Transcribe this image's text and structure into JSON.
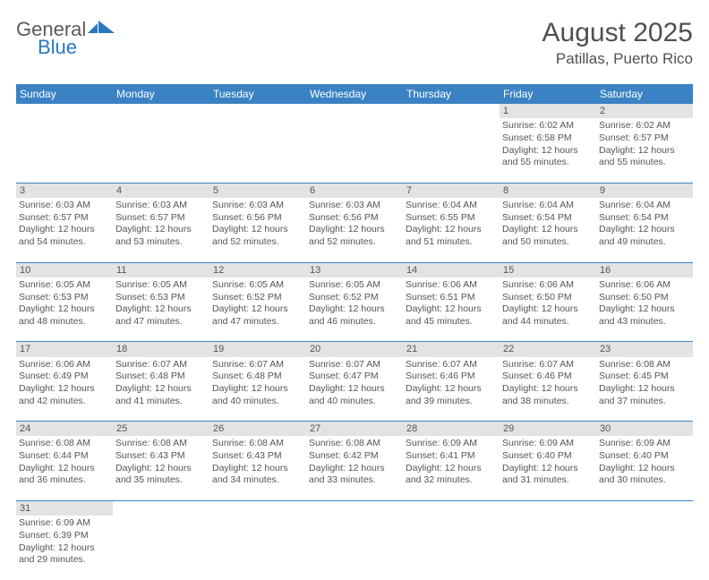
{
  "logo": {
    "word1": "General",
    "word2": "Blue",
    "color1": "#5a5a5a",
    "color2": "#2a78c2",
    "flag_color": "#2a78c2"
  },
  "title": "August 2025",
  "location": "Patillas, Puerto Rico",
  "header_bg": "#3b82c4",
  "header_fg": "#ffffff",
  "daynum_bg": "#e3e3e3",
  "rule_color": "#3b82c4",
  "text_color": "#555555",
  "page_bg": "#ffffff",
  "day_names": [
    "Sunday",
    "Monday",
    "Tuesday",
    "Wednesday",
    "Thursday",
    "Friday",
    "Saturday"
  ],
  "weeks": [
    {
      "days": [
        null,
        null,
        null,
        null,
        null,
        {
          "n": "1",
          "sunrise": "6:02 AM",
          "sunset": "6:58 PM",
          "dl_h": 12,
          "dl_m": 55
        },
        {
          "n": "2",
          "sunrise": "6:02 AM",
          "sunset": "6:57 PM",
          "dl_h": 12,
          "dl_m": 55
        }
      ]
    },
    {
      "days": [
        {
          "n": "3",
          "sunrise": "6:03 AM",
          "sunset": "6:57 PM",
          "dl_h": 12,
          "dl_m": 54
        },
        {
          "n": "4",
          "sunrise": "6:03 AM",
          "sunset": "6:57 PM",
          "dl_h": 12,
          "dl_m": 53
        },
        {
          "n": "5",
          "sunrise": "6:03 AM",
          "sunset": "6:56 PM",
          "dl_h": 12,
          "dl_m": 52
        },
        {
          "n": "6",
          "sunrise": "6:03 AM",
          "sunset": "6:56 PM",
          "dl_h": 12,
          "dl_m": 52
        },
        {
          "n": "7",
          "sunrise": "6:04 AM",
          "sunset": "6:55 PM",
          "dl_h": 12,
          "dl_m": 51
        },
        {
          "n": "8",
          "sunrise": "6:04 AM",
          "sunset": "6:54 PM",
          "dl_h": 12,
          "dl_m": 50
        },
        {
          "n": "9",
          "sunrise": "6:04 AM",
          "sunset": "6:54 PM",
          "dl_h": 12,
          "dl_m": 49
        }
      ]
    },
    {
      "days": [
        {
          "n": "10",
          "sunrise": "6:05 AM",
          "sunset": "6:53 PM",
          "dl_h": 12,
          "dl_m": 48
        },
        {
          "n": "11",
          "sunrise": "6:05 AM",
          "sunset": "6:53 PM",
          "dl_h": 12,
          "dl_m": 47
        },
        {
          "n": "12",
          "sunrise": "6:05 AM",
          "sunset": "6:52 PM",
          "dl_h": 12,
          "dl_m": 47
        },
        {
          "n": "13",
          "sunrise": "6:05 AM",
          "sunset": "6:52 PM",
          "dl_h": 12,
          "dl_m": 46
        },
        {
          "n": "14",
          "sunrise": "6:06 AM",
          "sunset": "6:51 PM",
          "dl_h": 12,
          "dl_m": 45
        },
        {
          "n": "15",
          "sunrise": "6:06 AM",
          "sunset": "6:50 PM",
          "dl_h": 12,
          "dl_m": 44
        },
        {
          "n": "16",
          "sunrise": "6:06 AM",
          "sunset": "6:50 PM",
          "dl_h": 12,
          "dl_m": 43
        }
      ]
    },
    {
      "days": [
        {
          "n": "17",
          "sunrise": "6:06 AM",
          "sunset": "6:49 PM",
          "dl_h": 12,
          "dl_m": 42
        },
        {
          "n": "18",
          "sunrise": "6:07 AM",
          "sunset": "6:48 PM",
          "dl_h": 12,
          "dl_m": 41
        },
        {
          "n": "19",
          "sunrise": "6:07 AM",
          "sunset": "6:48 PM",
          "dl_h": 12,
          "dl_m": 40
        },
        {
          "n": "20",
          "sunrise": "6:07 AM",
          "sunset": "6:47 PM",
          "dl_h": 12,
          "dl_m": 40
        },
        {
          "n": "21",
          "sunrise": "6:07 AM",
          "sunset": "6:46 PM",
          "dl_h": 12,
          "dl_m": 39
        },
        {
          "n": "22",
          "sunrise": "6:07 AM",
          "sunset": "6:46 PM",
          "dl_h": 12,
          "dl_m": 38
        },
        {
          "n": "23",
          "sunrise": "6:08 AM",
          "sunset": "6:45 PM",
          "dl_h": 12,
          "dl_m": 37
        }
      ]
    },
    {
      "days": [
        {
          "n": "24",
          "sunrise": "6:08 AM",
          "sunset": "6:44 PM",
          "dl_h": 12,
          "dl_m": 36
        },
        {
          "n": "25",
          "sunrise": "6:08 AM",
          "sunset": "6:43 PM",
          "dl_h": 12,
          "dl_m": 35
        },
        {
          "n": "26",
          "sunrise": "6:08 AM",
          "sunset": "6:43 PM",
          "dl_h": 12,
          "dl_m": 34
        },
        {
          "n": "27",
          "sunrise": "6:08 AM",
          "sunset": "6:42 PM",
          "dl_h": 12,
          "dl_m": 33
        },
        {
          "n": "28",
          "sunrise": "6:09 AM",
          "sunset": "6:41 PM",
          "dl_h": 12,
          "dl_m": 32
        },
        {
          "n": "29",
          "sunrise": "6:09 AM",
          "sunset": "6:40 PM",
          "dl_h": 12,
          "dl_m": 31
        },
        {
          "n": "30",
          "sunrise": "6:09 AM",
          "sunset": "6:40 PM",
          "dl_h": 12,
          "dl_m": 30
        }
      ]
    },
    {
      "days": [
        {
          "n": "31",
          "sunrise": "6:09 AM",
          "sunset": "6:39 PM",
          "dl_h": 12,
          "dl_m": 29
        },
        null,
        null,
        null,
        null,
        null,
        null
      ]
    }
  ],
  "labels": {
    "sunrise": "Sunrise:",
    "sunset": "Sunset:",
    "daylight": "Daylight:",
    "hours": "hours",
    "and": "and",
    "minutes": "minutes."
  }
}
